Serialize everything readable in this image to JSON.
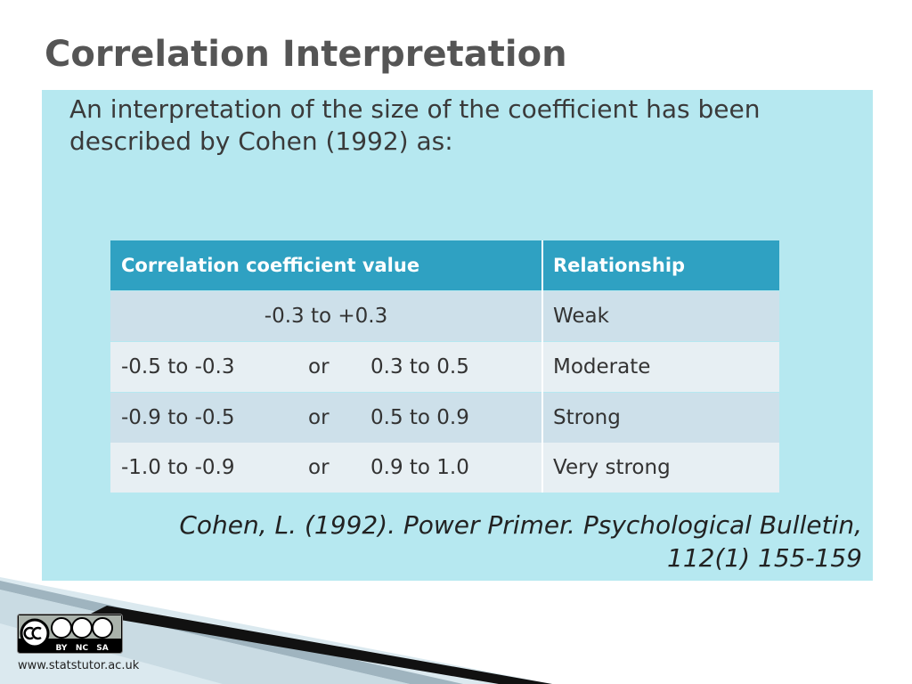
{
  "title": "Correlation Interpretation",
  "intro": [
    "An interpretation of the size of the coefficient has been",
    "described by Cohen (1992) as:"
  ],
  "table": {
    "header": [
      "Correlation coefficient value",
      "Relationship"
    ],
    "rows": [
      [
        "-0.3 to +0.3",
        "Weak"
      ],
      [
        "-0.5 to -0.3",
        "or",
        "0.3 to 0.5",
        "Moderate"
      ],
      [
        "-0.9 to -0.5",
        "or",
        "0.5 to 0.9",
        "Strong"
      ],
      [
        "-1.0 to -0.9",
        "or",
        "0.9 to 1.0",
        "Very strong"
      ]
    ]
  },
  "citation": [
    "Cohen, L. (1992). Power Primer. Psychological Bulletin,",
    "112(1) 155-159"
  ],
  "license": [
    "BY",
    "NC",
    "SA"
  ],
  "footer": "www.statstutor.ac.uk"
}
